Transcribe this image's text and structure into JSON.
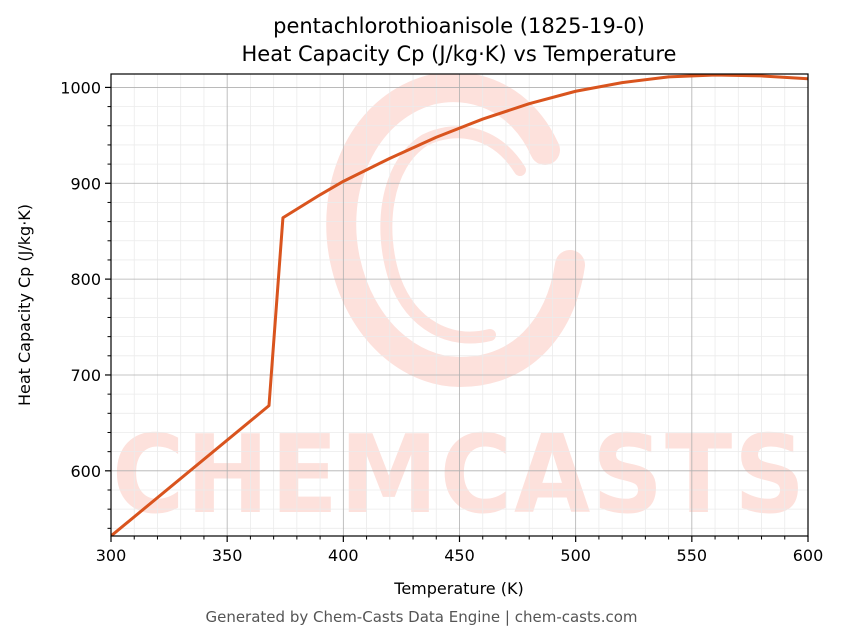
{
  "chart_data": {
    "type": "line",
    "title": "pentachlorothioanisole (1825-19-0)",
    "subtitle": "Heat Capacity Cp (J/kg·K) vs Temperature",
    "xlabel": "Temperature (K)",
    "ylabel": "Heat Capacity Cp (J/kg·K)",
    "xlim": [
      300,
      600
    ],
    "ylim": [
      532,
      1014
    ],
    "xticks": [
      300,
      350,
      400,
      450,
      500,
      550,
      600
    ],
    "yticks": [
      600,
      700,
      800,
      900,
      1000
    ],
    "grid": true,
    "legend": "none",
    "series": [
      {
        "color": "#d9541e",
        "x": [
          300,
          368,
          374,
          390,
          400,
          420,
          440,
          460,
          480,
          500,
          520,
          540,
          560,
          580,
          600
        ],
        "y": [
          532,
          668,
          864,
          888,
          902,
          926,
          948,
          967,
          983,
          996,
          1005,
          1011,
          1013,
          1012,
          1009
        ]
      }
    ]
  },
  "watermark": {
    "text": "CHEMCASTS",
    "color": "#fde1dc"
  },
  "footer": "Generated by Chem-Casts Data Engine | chem-casts.com"
}
